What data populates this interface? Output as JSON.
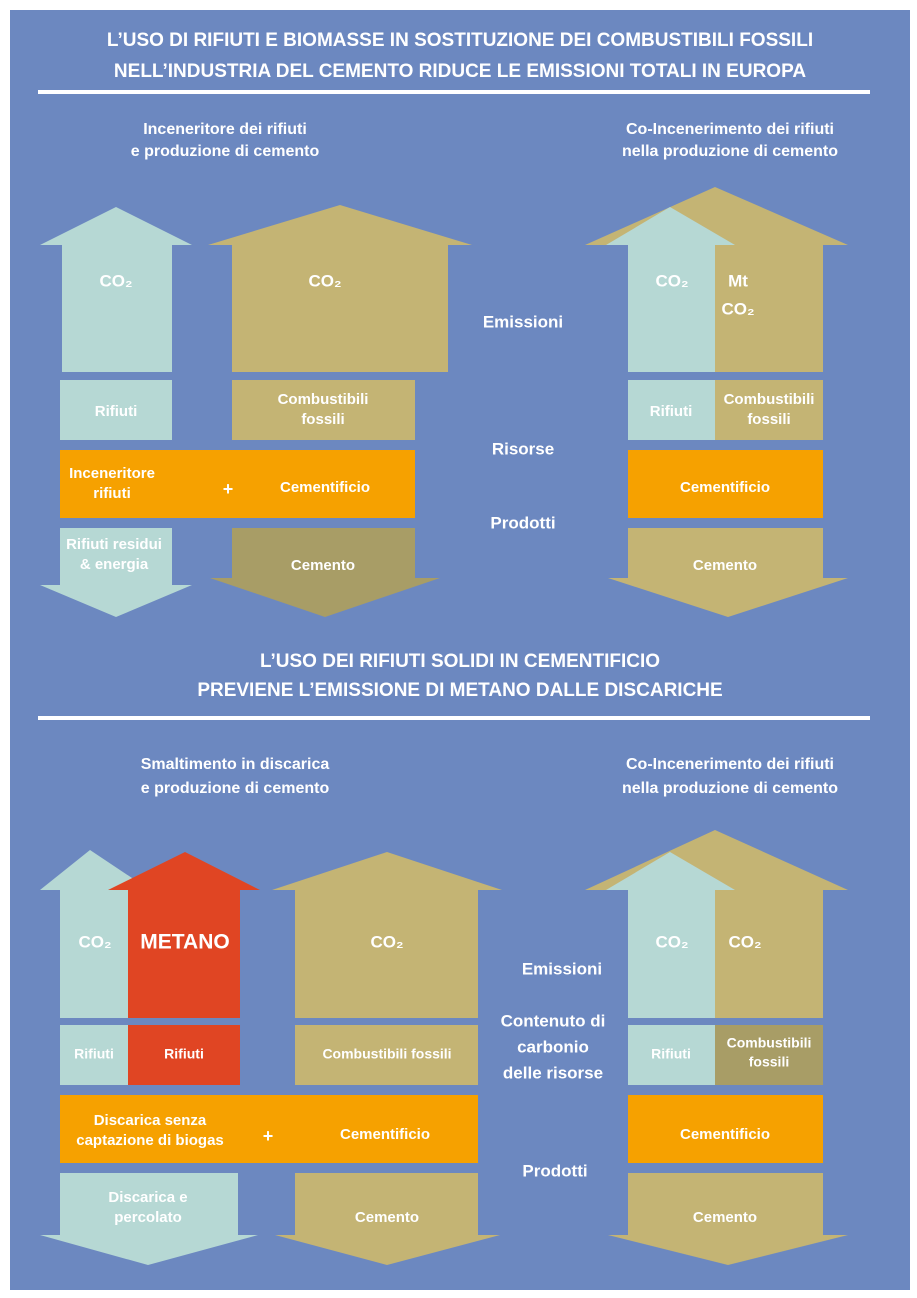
{
  "section1": {
    "title": [
      "L’USO DI RIFIUTI E BIOMASSE IN SOSTITUZIONE DEI COMBUSTIBILI FOSSILI",
      "NELL’INDUSTRIA DEL CEMENTO RIDUCE LE EMISSIONI TOTALI IN EUROPA"
    ],
    "left_heading": [
      "Inceneritore dei rifiuti",
      "e produzione di cemento"
    ],
    "right_heading": [
      "Co-Incenerimento dei rifiuti",
      "nella produzione di cemento"
    ],
    "left": {
      "co2_a": "CO₂",
      "co2_b": "CO₂",
      "rifiuti": "Rifiuti",
      "combustibili": [
        "Combustibili",
        "fossili"
      ],
      "inceneritore": [
        "Inceneritore",
        "rifiuti"
      ],
      "plus": "+",
      "cementificio": "Cementificio",
      "residui": [
        "Rifiuti residui",
        "& energia"
      ],
      "cemento": "Cemento"
    },
    "middle": {
      "emissioni": "Emissioni",
      "risorse": "Risorse",
      "prodotti": "Prodotti"
    },
    "right": {
      "co2": "CO₂",
      "mt_co2": [
        "Mt",
        "CO₂"
      ],
      "rifiuti": "Rifiuti",
      "combustibili": [
        "Combustibili",
        "fossili"
      ],
      "cementificio": "Cementificio",
      "cemento": "Cemento"
    }
  },
  "section2": {
    "title": [
      "L’USO DEI RIFIUTI SOLIDI IN CEMENTIFICIO",
      "PREVIENE L’EMISSIONE DI METANO DALLE DISCARICHE"
    ],
    "left_heading": [
      "Smaltimento in discarica",
      "e produzione di cemento"
    ],
    "right_heading": [
      "Co-Incenerimento dei rifiuti",
      "nella produzione di cemento"
    ],
    "left": {
      "co2_a": "CO₂",
      "metano": "METANO",
      "co2_b": "CO₂",
      "rifiuti_a": "Rifiuti",
      "rifiuti_b": "Rifiuti",
      "combustibili": "Combustibili fossili",
      "discarica": [
        "Discarica senza",
        "captazione di biogas"
      ],
      "plus": "+",
      "cementificio": "Cementificio",
      "percolato": [
        "Discarica e",
        "percolato"
      ],
      "cemento": "Cemento"
    },
    "middle": {
      "emissioni": "Emissioni",
      "contenuto": [
        "Contenuto di",
        "carbonio",
        "delle risorse"
      ],
      "prodotti": "Prodotti"
    },
    "right": {
      "co2_a": "CO₂",
      "co2_b": "CO₂",
      "rifiuti": "Rifiuti",
      "combustibili": [
        "Combustibili",
        "fossili"
      ],
      "cementificio": "Cementificio",
      "cemento": "Cemento"
    }
  }
}
